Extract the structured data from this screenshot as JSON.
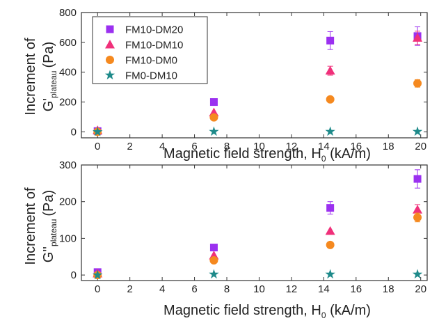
{
  "chart_data": [
    {
      "type": "scatter",
      "ylabel_lines": [
        "Increment of",
        "G'",
        "plateau",
        "(Pa)"
      ],
      "xlabel_parts": [
        "Magnetic field strength, H",
        "0",
        " (kA/m)"
      ],
      "xlim": [
        -1,
        20.4
      ],
      "ylim": [
        -40,
        800
      ],
      "xticks": [
        0,
        2,
        4,
        6,
        8,
        10,
        12,
        14,
        16,
        18,
        20
      ],
      "yticks": [
        0,
        200,
        400,
        600,
        800
      ],
      "legend_position": "top-left",
      "grid": false,
      "series": [
        {
          "name": "FM10-DM20",
          "marker": "square",
          "color": "#9b30f0",
          "x": [
            0,
            7.2,
            14.4,
            19.8
          ],
          "y": [
            5,
            200,
            612,
            642
          ],
          "err": [
            0,
            0,
            60,
            62
          ]
        },
        {
          "name": "FM10-DM10",
          "marker": "triangle",
          "color": "#f0307a",
          "x": [
            0,
            7.2,
            14.4,
            19.8
          ],
          "y": [
            10,
            130,
            410,
            630
          ],
          "err": [
            0,
            0,
            30,
            45
          ]
        },
        {
          "name": "FM10-DM0",
          "marker": "circle",
          "color": "#f5891f",
          "x": [
            0,
            7.2,
            14.4,
            19.8
          ],
          "y": [
            0,
            97,
            218,
            325
          ],
          "err": [
            0,
            0,
            0,
            25
          ]
        },
        {
          "name": "FM0-DM10",
          "marker": "star",
          "color": "#1e8a8a",
          "x": [
            0,
            7.2,
            14.4,
            19.8
          ],
          "y": [
            0,
            2,
            2,
            2
          ],
          "err": [
            0,
            0,
            0,
            0
          ]
        }
      ]
    },
    {
      "type": "scatter",
      "ylabel_lines": [
        "Increment of",
        "G''",
        "plateau",
        "(Pa)"
      ],
      "xlabel_parts": [
        "Magnetic field strength, H",
        "0",
        " (kA/m)"
      ],
      "xlim": [
        -1,
        20.4
      ],
      "ylim": [
        -15,
        300
      ],
      "xticks": [
        0,
        2,
        4,
        6,
        8,
        10,
        12,
        14,
        16,
        18,
        20
      ],
      "yticks": [
        0,
        100,
        200,
        300
      ],
      "grid": false,
      "series": [
        {
          "name": "FM10-DM20",
          "marker": "square",
          "color": "#9b30f0",
          "x": [
            0,
            7.2,
            14.4,
            19.8
          ],
          "y": [
            8,
            75,
            183,
            262
          ],
          "err": [
            0,
            0,
            17,
            25
          ]
        },
        {
          "name": "FM10-DM10",
          "marker": "triangle",
          "color": "#f0307a",
          "x": [
            0,
            7.2,
            14.4,
            19.8
          ],
          "y": [
            4,
            53,
            120,
            178
          ],
          "err": [
            0,
            0,
            0,
            14
          ]
        },
        {
          "name": "FM10-DM0",
          "marker": "circle",
          "color": "#f5891f",
          "x": [
            0,
            7.2,
            14.4,
            19.8
          ],
          "y": [
            0,
            40,
            82,
            157
          ],
          "err": [
            0,
            0,
            0,
            12
          ]
        },
        {
          "name": "FM0-DM10",
          "marker": "star",
          "color": "#1e8a8a",
          "x": [
            0,
            7.2,
            14.4,
            19.8
          ],
          "y": [
            0,
            2,
            2,
            2
          ],
          "err": [
            0,
            0,
            0,
            0
          ]
        }
      ]
    }
  ]
}
